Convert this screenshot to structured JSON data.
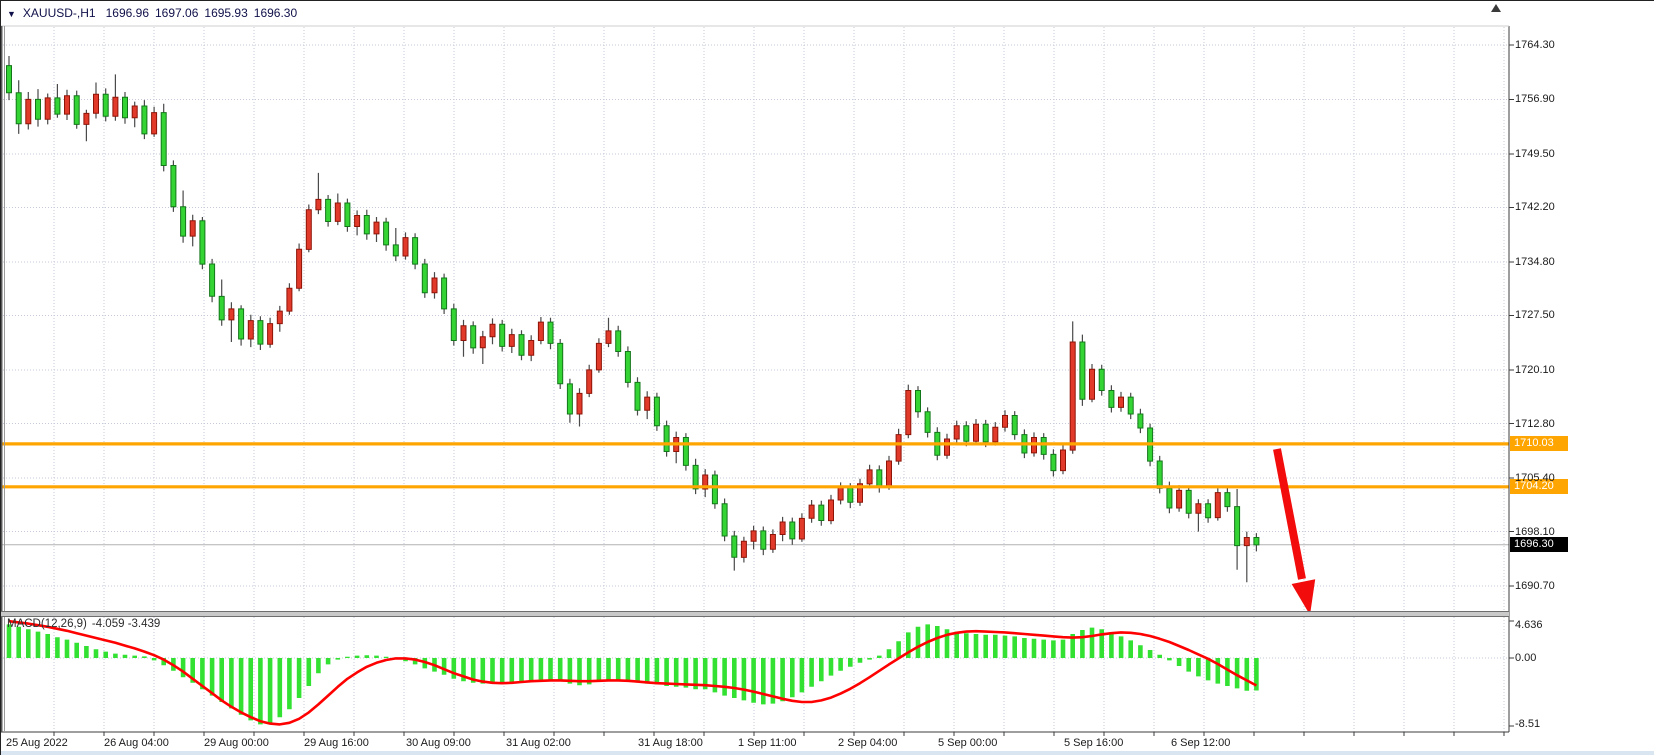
{
  "header": {
    "symbol_timeframe": "XAUUSD-,H1",
    "open": "1696.96",
    "high": "1697.06",
    "low": "1695.93",
    "close": "1696.30"
  },
  "price_scale": {
    "labels": [
      "1764.30",
      "1756.90",
      "1749.50",
      "1742.20",
      "1734.80",
      "1727.50",
      "1720.10",
      "1712.80",
      "1705.40",
      "1698.10",
      "1690.70"
    ],
    "values": [
      1764.3,
      1756.9,
      1749.5,
      1742.2,
      1734.8,
      1727.5,
      1720.1,
      1712.8,
      1705.4,
      1698.1,
      1690.7
    ]
  },
  "time_scale": {
    "labels": [
      "25 Aug 2022",
      "26 Aug 04:00",
      "29 Aug 00:00",
      "29 Aug 16:00",
      "30 Aug 09:00",
      "31 Aug 02:00",
      "31 Aug 18:00",
      "1 Sep 11:00",
      "2 Sep 04:00",
      "5 Sep 00:00",
      "5 Sep 16:00",
      "6 Sep 12:00"
    ]
  },
  "levels": {
    "resistance": {
      "label": "1710.03",
      "value": 1710.03
    },
    "support": {
      "label": "1704.20",
      "value": 1704.2
    },
    "bid": {
      "label": "1696.30",
      "value": 1696.3
    }
  },
  "indicator": {
    "name": "MACD(12,26,9)",
    "values": "-4.059 -3.439",
    "macd_value": -4.059,
    "signal_value": -3.439,
    "scale_labels": [
      "4.636",
      "0.00",
      "-8.51"
    ],
    "scale_values": [
      4.636,
      0,
      -8.51
    ]
  },
  "annotation": {
    "type": "arrow",
    "direction": "down",
    "meaning": "projected-decline"
  },
  "colors": {
    "bull": "#e23a2a",
    "bull_border": "#8e1408",
    "bear": "#35d435",
    "bear_border": "#13771a",
    "wick": "#4a4a4a",
    "histogram": "#32e132",
    "signal": "#ff0000",
    "level": "#ffa502",
    "grid": "#c6cad8",
    "bid_line": "#b2b2b2",
    "arrow": "#f20c0c",
    "tag_bid_bg": "#000000",
    "frame": "#5a5a5a"
  },
  "chart_data": {
    "type": "candlestick",
    "symbol": "XAUUSD-",
    "timeframe": "H1",
    "title": "XAUUSD-,H1 1696.96 1697.06 1695.93 1696.30",
    "ylim": [
      1690.7,
      1764.3
    ],
    "y_ticks": [
      1764.3,
      1756.9,
      1749.5,
      1742.2,
      1734.8,
      1727.5,
      1720.1,
      1712.8,
      1705.4,
      1698.1,
      1690.7
    ],
    "x_labels": [
      "25 Aug 2022",
      "26 Aug 04:00",
      "29 Aug 00:00",
      "29 Aug 16:00",
      "30 Aug 09:00",
      "31 Aug 02:00",
      "31 Aug 18:00",
      "1 Sep 11:00",
      "2 Sep 04:00",
      "5 Sep 00:00",
      "5 Sep 16:00",
      "6 Sep 12:00"
    ],
    "candles": [
      [
        1761.5,
        1762.8,
        1756.8,
        1757.8
      ],
      [
        1757.8,
        1759.5,
        1752.2,
        1753.6
      ],
      [
        1753.6,
        1757.9,
        1752.8,
        1756.9
      ],
      [
        1756.9,
        1758.3,
        1753.2,
        1754.2
      ],
      [
        1754.2,
        1757.7,
        1753.5,
        1757.1
      ],
      [
        1757.1,
        1759.0,
        1754.4,
        1754.9
      ],
      [
        1754.9,
        1758.2,
        1754.1,
        1757.4
      ],
      [
        1757.4,
        1758.1,
        1752.9,
        1753.5
      ],
      [
        1753.5,
        1755.5,
        1751.2,
        1755.0
      ],
      [
        1755.0,
        1759.2,
        1754.3,
        1757.6
      ],
      [
        1757.6,
        1758.4,
        1753.9,
        1754.6
      ],
      [
        1754.6,
        1760.3,
        1754.0,
        1757.2
      ],
      [
        1757.2,
        1757.9,
        1753.6,
        1754.4
      ],
      [
        1754.4,
        1756.6,
        1753.1,
        1756.0
      ],
      [
        1756.0,
        1756.8,
        1751.5,
        1752.2
      ],
      [
        1752.2,
        1755.9,
        1751.8,
        1755.1
      ],
      [
        1755.1,
        1756.3,
        1747.1,
        1747.9
      ],
      [
        1747.9,
        1748.6,
        1741.6,
        1742.3
      ],
      [
        1742.3,
        1744.5,
        1737.4,
        1738.3
      ],
      [
        1738.3,
        1741.2,
        1736.9,
        1740.4
      ],
      [
        1740.4,
        1740.9,
        1733.8,
        1734.5
      ],
      [
        1734.5,
        1735.2,
        1729.3,
        1730.1
      ],
      [
        1730.1,
        1732.4,
        1726.1,
        1726.9
      ],
      [
        1726.9,
        1729.3,
        1723.9,
        1728.4
      ],
      [
        1728.4,
        1728.9,
        1723.4,
        1724.3
      ],
      [
        1724.3,
        1727.6,
        1723.2,
        1726.8
      ],
      [
        1726.8,
        1727.4,
        1722.8,
        1723.6
      ],
      [
        1723.6,
        1727.2,
        1723.1,
        1726.4
      ],
      [
        1726.4,
        1728.8,
        1725.3,
        1728.1
      ],
      [
        1728.1,
        1731.9,
        1727.6,
        1731.2
      ],
      [
        1731.2,
        1737.3,
        1730.8,
        1736.5
      ],
      [
        1736.5,
        1742.6,
        1736.1,
        1741.9
      ],
      [
        1741.9,
        1746.9,
        1741.3,
        1743.3
      ],
      [
        1743.3,
        1743.9,
        1739.6,
        1740.3
      ],
      [
        1740.3,
        1744.1,
        1739.8,
        1742.8
      ],
      [
        1742.8,
        1743.4,
        1738.9,
        1739.6
      ],
      [
        1739.6,
        1741.8,
        1738.4,
        1741.1
      ],
      [
        1741.1,
        1741.9,
        1737.8,
        1738.6
      ],
      [
        1738.6,
        1740.9,
        1737.5,
        1740.2
      ],
      [
        1740.2,
        1740.8,
        1736.3,
        1737.1
      ],
      [
        1737.1,
        1739.4,
        1734.9,
        1735.6
      ],
      [
        1735.6,
        1738.8,
        1735.1,
        1738.1
      ],
      [
        1738.1,
        1738.7,
        1733.8,
        1734.5
      ],
      [
        1734.5,
        1735.2,
        1729.9,
        1730.6
      ],
      [
        1730.6,
        1733.4,
        1729.8,
        1732.6
      ],
      [
        1732.6,
        1733.2,
        1727.7,
        1728.4
      ],
      [
        1728.4,
        1729.1,
        1723.4,
        1724.1
      ],
      [
        1724.1,
        1726.9,
        1721.9,
        1726.1
      ],
      [
        1726.1,
        1726.7,
        1722.3,
        1723.1
      ],
      [
        1723.1,
        1725.4,
        1720.9,
        1724.6
      ],
      [
        1724.6,
        1727.1,
        1723.6,
        1726.3
      ],
      [
        1726.3,
        1726.9,
        1722.6,
        1723.3
      ],
      [
        1723.3,
        1725.7,
        1722.4,
        1724.9
      ],
      [
        1724.9,
        1725.5,
        1721.4,
        1722.1
      ],
      [
        1722.1,
        1724.8,
        1721.3,
        1724.1
      ],
      [
        1724.1,
        1727.3,
        1723.6,
        1726.6
      ],
      [
        1726.6,
        1727.2,
        1722.9,
        1723.7
      ],
      [
        1723.7,
        1724.3,
        1717.5,
        1718.2
      ],
      [
        1718.2,
        1718.9,
        1712.9,
        1714.1
      ],
      [
        1714.1,
        1717.6,
        1712.4,
        1716.9
      ],
      [
        1716.9,
        1720.8,
        1716.4,
        1720.1
      ],
      [
        1720.1,
        1724.4,
        1719.7,
        1723.7
      ],
      [
        1723.7,
        1727.2,
        1723.2,
        1725.4
      ],
      [
        1725.4,
        1726.1,
        1721.9,
        1722.6
      ],
      [
        1722.6,
        1723.3,
        1717.7,
        1718.4
      ],
      [
        1718.4,
        1719.1,
        1713.9,
        1714.6
      ],
      [
        1714.6,
        1717.2,
        1713.4,
        1716.4
      ],
      [
        1716.4,
        1717.0,
        1711.8,
        1712.5
      ],
      [
        1712.5,
        1713.2,
        1708.3,
        1709.0
      ],
      [
        1709.0,
        1711.7,
        1707.4,
        1710.9
      ],
      [
        1710.9,
        1711.5,
        1706.4,
        1707.1
      ],
      [
        1707.1,
        1708.0,
        1703.2,
        1703.9
      ],
      [
        1703.9,
        1706.6,
        1702.8,
        1705.8
      ],
      [
        1705.8,
        1706.4,
        1701.2,
        1701.9
      ],
      [
        1701.9,
        1702.6,
        1696.8,
        1697.5
      ],
      [
        1697.5,
        1698.2,
        1692.8,
        1694.6
      ],
      [
        1694.6,
        1697.4,
        1693.9,
        1696.8
      ],
      [
        1696.8,
        1698.9,
        1695.7,
        1698.2
      ],
      [
        1698.2,
        1698.8,
        1694.9,
        1695.7
      ],
      [
        1695.7,
        1698.4,
        1695.2,
        1697.7
      ],
      [
        1697.7,
        1700.1,
        1696.8,
        1699.4
      ],
      [
        1699.4,
        1700.0,
        1696.3,
        1697.1
      ],
      [
        1697.1,
        1700.6,
        1696.7,
        1699.9
      ],
      [
        1699.9,
        1702.4,
        1699.3,
        1701.7
      ],
      [
        1701.7,
        1702.3,
        1698.9,
        1699.6
      ],
      [
        1699.6,
        1703.1,
        1699.1,
        1702.4
      ],
      [
        1702.4,
        1704.8,
        1701.8,
        1704.1
      ],
      [
        1704.1,
        1704.7,
        1701.3,
        1702.1
      ],
      [
        1702.1,
        1705.3,
        1701.6,
        1704.6
      ],
      [
        1704.6,
        1707.2,
        1704.0,
        1706.5
      ],
      [
        1706.5,
        1707.1,
        1703.4,
        1704.2
      ],
      [
        1704.2,
        1708.4,
        1703.8,
        1707.7
      ],
      [
        1707.7,
        1712.1,
        1707.2,
        1711.3
      ],
      [
        1711.3,
        1718.1,
        1710.8,
        1717.3
      ],
      [
        1717.3,
        1717.9,
        1713.6,
        1714.4
      ],
      [
        1714.4,
        1715.0,
        1710.9,
        1711.6
      ],
      [
        1711.6,
        1712.3,
        1707.8,
        1708.5
      ],
      [
        1708.5,
        1711.4,
        1708.0,
        1710.7
      ],
      [
        1710.7,
        1713.2,
        1710.2,
        1712.5
      ],
      [
        1712.5,
        1713.1,
        1709.7,
        1710.4
      ],
      [
        1710.4,
        1713.4,
        1709.9,
        1712.7
      ],
      [
        1712.7,
        1713.3,
        1709.6,
        1710.3
      ],
      [
        1710.3,
        1713.0,
        1709.8,
        1712.3
      ],
      [
        1712.3,
        1714.6,
        1711.7,
        1713.9
      ],
      [
        1713.9,
        1714.5,
        1710.6,
        1711.3
      ],
      [
        1711.3,
        1712.0,
        1708.1,
        1708.8
      ],
      [
        1708.8,
        1711.6,
        1708.3,
        1710.9
      ],
      [
        1710.9,
        1711.5,
        1707.9,
        1708.6
      ],
      [
        1708.6,
        1709.3,
        1705.6,
        1706.4
      ],
      [
        1706.4,
        1709.9,
        1705.9,
        1709.2
      ],
      [
        1709.2,
        1726.7,
        1708.7,
        1723.9
      ],
      [
        1723.9,
        1724.9,
        1715.2,
        1716.1
      ],
      [
        1716.1,
        1720.9,
        1715.7,
        1720.2
      ],
      [
        1720.2,
        1720.8,
        1716.6,
        1717.3
      ],
      [
        1717.3,
        1718.0,
        1714.3,
        1715.0
      ],
      [
        1715.0,
        1717.1,
        1714.4,
        1716.4
      ],
      [
        1716.4,
        1717.0,
        1713.4,
        1714.1
      ],
      [
        1714.1,
        1714.8,
        1711.5,
        1712.2
      ],
      [
        1712.2,
        1712.8,
        1707.0,
        1707.7
      ],
      [
        1707.7,
        1708.4,
        1703.3,
        1704.0
      ],
      [
        1704.0,
        1704.9,
        1700.6,
        1701.3
      ],
      [
        1701.3,
        1704.4,
        1700.8,
        1703.7
      ],
      [
        1703.7,
        1704.3,
        1699.9,
        1700.6
      ],
      [
        1700.6,
        1702.5,
        1698.1,
        1701.9
      ],
      [
        1701.9,
        1702.5,
        1699.3,
        1700.0
      ],
      [
        1700.0,
        1704.0,
        1699.6,
        1703.4
      ],
      [
        1703.4,
        1704.1,
        1700.8,
        1701.5
      ],
      [
        1701.5,
        1703.9,
        1692.9,
        1696.2
      ],
      [
        1696.2,
        1698.1,
        1691.2,
        1697.3
      ],
      [
        1697.3,
        1697.9,
        1695.4,
        1696.3
      ]
    ],
    "macd": {
      "histogram": [
        4.2,
        3.9,
        3.6,
        3.3,
        3.0,
        2.6,
        2.3,
        1.9,
        1.5,
        1.1,
        0.8,
        0.55,
        0.4,
        0.3,
        0.2,
        -0.3,
        -0.9,
        -1.6,
        -2.4,
        -3.1,
        -3.9,
        -4.7,
        -5.5,
        -6.3,
        -7.1,
        -7.8,
        -8.3,
        -8.1,
        -7.4,
        -6.4,
        -5.0,
        -3.5,
        -1.9,
        -0.8,
        -0.2,
        0.15,
        0.3,
        0.35,
        0.3,
        0.15,
        -0.1,
        -0.4,
        -0.8,
        -1.3,
        -1.7,
        -2.1,
        -2.6,
        -2.9,
        -3.1,
        -3.2,
        -3.2,
        -3.1,
        -3.0,
        -2.9,
        -2.8,
        -2.7,
        -2.7,
        -2.9,
        -3.2,
        -3.4,
        -3.3,
        -3.0,
        -2.8,
        -2.7,
        -2.8,
        -3.0,
        -3.2,
        -3.3,
        -3.5,
        -3.6,
        -3.7,
        -3.9,
        -3.9,
        -4.3,
        -4.7,
        -5.0,
        -5.3,
        -5.6,
        -5.8,
        -5.7,
        -5.4,
        -4.9,
        -4.3,
        -3.6,
        -2.9,
        -2.2,
        -1.6,
        -1.1,
        -0.6,
        -0.2,
        0.3,
        1.1,
        2.1,
        3.2,
        3.9,
        4.2,
        4.0,
        3.6,
        3.3,
        3.1,
        3.0,
        2.9,
        2.9,
        2.8,
        2.7,
        2.5,
        2.4,
        2.3,
        2.2,
        2.3,
        3.0,
        3.5,
        3.8,
        3.6,
        3.2,
        2.7,
        2.2,
        1.6,
        1.0,
        0.4,
        -0.3,
        -1.0,
        -1.7,
        -2.3,
        -2.8,
        -3.2,
        -3.5,
        -3.8,
        -4.1,
        -4.06
      ],
      "signal": [
        4.6,
        4.45,
        4.3,
        4.1,
        3.9,
        3.65,
        3.4,
        3.1,
        2.8,
        2.5,
        2.2,
        1.9,
        1.55,
        1.2,
        0.8,
        0.35,
        -0.2,
        -0.9,
        -1.7,
        -2.6,
        -3.5,
        -4.4,
        -5.3,
        -6.1,
        -6.8,
        -7.4,
        -7.9,
        -8.2,
        -8.3,
        -8.1,
        -7.6,
        -6.8,
        -5.8,
        -4.7,
        -3.6,
        -2.6,
        -1.8,
        -1.1,
        -0.6,
        -0.25,
        -0.05,
        -0.05,
        -0.2,
        -0.5,
        -0.9,
        -1.4,
        -1.9,
        -2.3,
        -2.7,
        -2.95,
        -3.1,
        -3.15,
        -3.1,
        -3.0,
        -2.9,
        -2.85,
        -2.8,
        -2.8,
        -2.85,
        -2.9,
        -2.9,
        -2.85,
        -2.8,
        -2.8,
        -2.85,
        -2.95,
        -3.05,
        -3.15,
        -3.2,
        -3.25,
        -3.3,
        -3.35,
        -3.4,
        -3.5,
        -3.6,
        -3.75,
        -3.95,
        -4.2,
        -4.5,
        -4.8,
        -5.1,
        -5.35,
        -5.5,
        -5.5,
        -5.3,
        -4.95,
        -4.45,
        -3.85,
        -3.15,
        -2.4,
        -1.6,
        -0.8,
        -0.05,
        0.7,
        1.4,
        2.0,
        2.5,
        2.9,
        3.15,
        3.3,
        3.35,
        3.3,
        3.25,
        3.2,
        3.1,
        3.0,
        2.9,
        2.8,
        2.7,
        2.6,
        2.55,
        2.6,
        2.75,
        2.95,
        3.1,
        3.2,
        3.15,
        3.0,
        2.75,
        2.4,
        2.0,
        1.5,
        1.0,
        0.45,
        -0.1,
        -0.75,
        -1.45,
        -2.15,
        -2.8,
        -3.44
      ]
    }
  }
}
